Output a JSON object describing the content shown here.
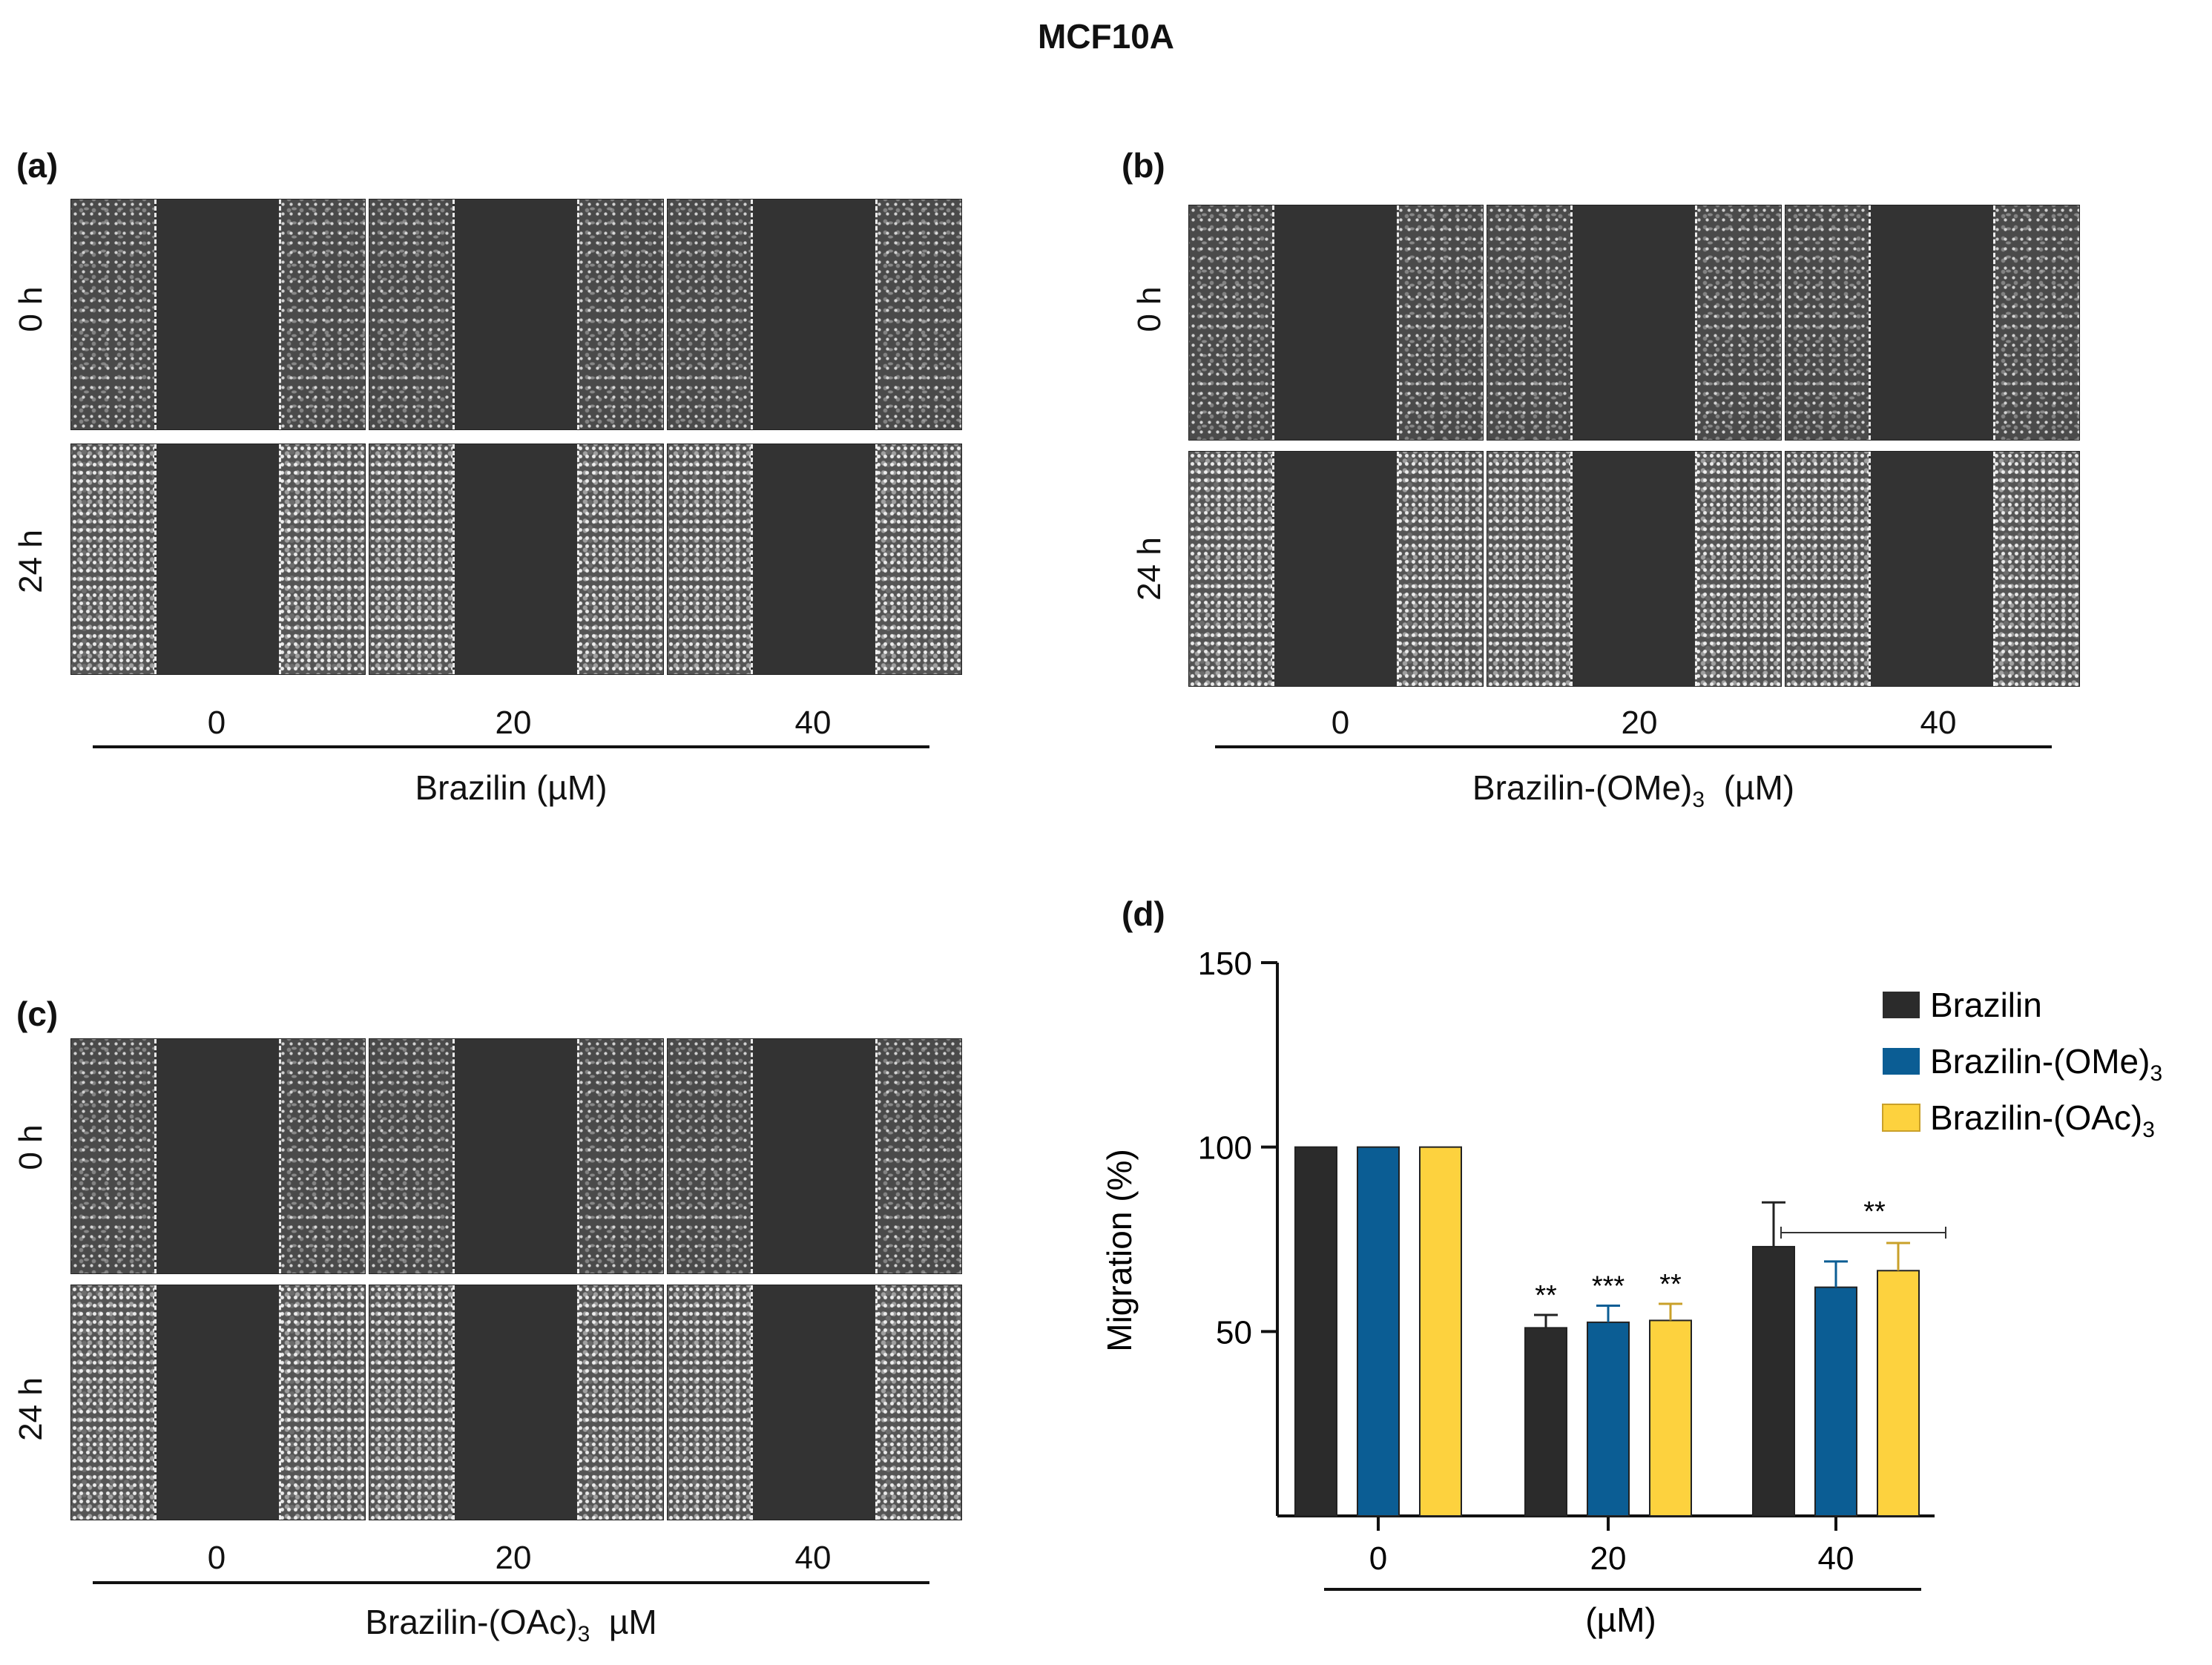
{
  "figure_title": "MCF10A",
  "panels": {
    "a": {
      "label": "(a)",
      "row_labels": [
        "0 h",
        "24 h"
      ],
      "doses": [
        "0",
        "20",
        "40"
      ],
      "axis_title": "Brazilin  (µM)"
    },
    "b": {
      "label": "(b)",
      "row_labels": [
        "0 h",
        "24 h"
      ],
      "doses": [
        "0",
        "20",
        "40"
      ],
      "axis_title_main": "Brazilin-(OMe)",
      "axis_title_sub": "3",
      "axis_title_tail": "  (µM)"
    },
    "c": {
      "label": "(c)",
      "row_labels": [
        "0 h",
        "24 h"
      ],
      "doses": [
        "0",
        "20",
        "40"
      ],
      "axis_title_main": "Brazilin-(OAc)",
      "axis_title_sub": "3",
      "axis_title_tail": "  µM"
    },
    "d": {
      "label": "(d)"
    }
  },
  "chart_data": {
    "type": "bar",
    "categories": [
      "0",
      "20",
      "40"
    ],
    "xlabel": "(µM)",
    "ylabel": "Migration (%)",
    "ylim": [
      0,
      150
    ],
    "yticks": [
      50,
      100,
      150
    ],
    "legend_position": "top-right",
    "series": [
      {
        "name": "Brazilin",
        "name_sub": "",
        "color": "#2b2b2b",
        "values": [
          100,
          51,
          73
        ],
        "errors": [
          0,
          3.5,
          12
        ],
        "sig": [
          "",
          "**",
          ""
        ]
      },
      {
        "name": "Brazilin-(OMe)",
        "name_sub": "3",
        "color": "#0b5d94",
        "values": [
          100,
          52.5,
          62
        ],
        "errors": [
          0,
          4.5,
          7
        ],
        "sig": [
          "",
          "***",
          ""
        ]
      },
      {
        "name": "Brazilin-(OAc)",
        "name_sub": "3",
        "color": "#fdd23e",
        "values": [
          100,
          53,
          66.5
        ],
        "errors": [
          0,
          4.5,
          7.5
        ],
        "sig": [
          "",
          "**",
          ""
        ]
      }
    ],
    "bracket": {
      "category": "40",
      "label": "**"
    }
  }
}
